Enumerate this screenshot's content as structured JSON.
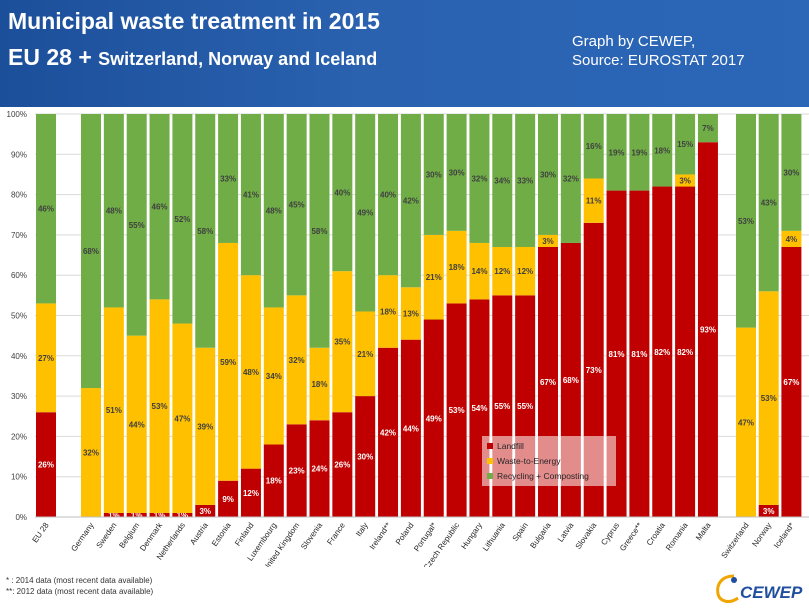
{
  "header": {
    "title_line1": "Municipal waste treatment in 2015",
    "title_line2_main": "EU 28 + ",
    "title_line2_small": "Switzerland, Norway and Iceland",
    "credit_line1": "Graph by CEWEP,",
    "credit_line2": "Source: EUROSTAT 2017"
  },
  "footnotes": {
    "note1": "* : 2014 data (most recent data available)",
    "note2": "**: 2012 data (most recent data available)"
  },
  "logo": {
    "text": "CEWEP"
  },
  "colors": {
    "landfill": "#c00000",
    "wte": "#ffc000",
    "recycling": "#70ad47",
    "header": "#2a62b0"
  },
  "chart_data": {
    "type": "bar",
    "stacked": true,
    "title": "Municipal waste treatment in 2015",
    "ylim": [
      0,
      100
    ],
    "yticks": [
      "0%",
      "10%",
      "20%",
      "30%",
      "40%",
      "50%",
      "60%",
      "70%",
      "80%",
      "90%",
      "100%"
    ],
    "legend_position": "bottom-center",
    "categories": [
      "EU 28",
      "Germany",
      "Sweden",
      "Belgium",
      "Denmark",
      "Netherlands",
      "Austria",
      "Estonia",
      "Finland",
      "Luxembourg",
      "United Kingdom",
      "Slovenia",
      "France",
      "Italy",
      "Ireland**",
      "Poland",
      "Portugal*",
      "Czech Republic",
      "Hungary",
      "Lithuania",
      "Spain",
      "Bulgaria",
      "Latvia",
      "Slovakia",
      "Cyprus",
      "Greece**",
      "Croatia",
      "Romania",
      "Malta",
      "Switzerland",
      "Norway",
      "Iceland*"
    ],
    "groups": [
      1,
      28,
      3
    ],
    "series": [
      {
        "name": "Landfill",
        "values": [
          26,
          0,
          1,
          1,
          1,
          1,
          3,
          9,
          12,
          18,
          23,
          24,
          26,
          30,
          42,
          44,
          49,
          53,
          54,
          55,
          55,
          67,
          68,
          73,
          81,
          81,
          82,
          82,
          93,
          0,
          3,
          67
        ],
        "labels": [
          "26%",
          "",
          "1%",
          "1%",
          "1%",
          "1%",
          "3%",
          "9%",
          "12%",
          "18%",
          "23%",
          "24%",
          "26%",
          "30%",
          "42%",
          "44%",
          "49%",
          "53%",
          "54%",
          "55%",
          "55%",
          "67%",
          "68%",
          "73%",
          "81%",
          "81%",
          "82%",
          "82%",
          "93%",
          "",
          "3%",
          "67%"
        ]
      },
      {
        "name": "Waste-to-Energy",
        "values": [
          27,
          32,
          51,
          44,
          53,
          47,
          39,
          59,
          48,
          34,
          32,
          18,
          35,
          21,
          18,
          13,
          21,
          18,
          14,
          12,
          12,
          3,
          0,
          11,
          0,
          0,
          0,
          3,
          0,
          47,
          53,
          4
        ],
        "labels": [
          "27%",
          "32%",
          "51%",
          "44%",
          "53%",
          "47%",
          "39%",
          "59%",
          "48%",
          "34%",
          "32%",
          "18%",
          "35%",
          "21%",
          "18%",
          "13%",
          "21%",
          "18%",
          "14%",
          "12%",
          "12%",
          "3%",
          "",
          "11%",
          "",
          "",
          "",
          "3%",
          "",
          "47%",
          "53%",
          "4%"
        ]
      },
      {
        "name": "Recycling + Composting",
        "values": [
          46,
          68,
          48,
          55,
          46,
          52,
          58,
          33,
          41,
          48,
          45,
          58,
          40,
          49,
          40,
          42,
          30,
          30,
          32,
          34,
          33,
          30,
          32,
          16,
          19,
          19,
          18,
          15,
          7,
          53,
          43,
          30
        ],
        "labels": [
          "46%",
          "68%",
          "48%",
          "55%",
          "46%",
          "52%",
          "58%",
          "33%",
          "41%",
          "48%",
          "45%",
          "58%",
          "40%",
          "49%",
          "40%",
          "42%",
          "30%",
          "30%",
          "32%",
          "34%",
          "33%",
          "30%",
          "32%",
          "16%",
          "19%",
          "19%",
          "18%",
          "15%",
          "7%",
          "53%",
          "43%",
          "30%"
        ]
      }
    ]
  }
}
